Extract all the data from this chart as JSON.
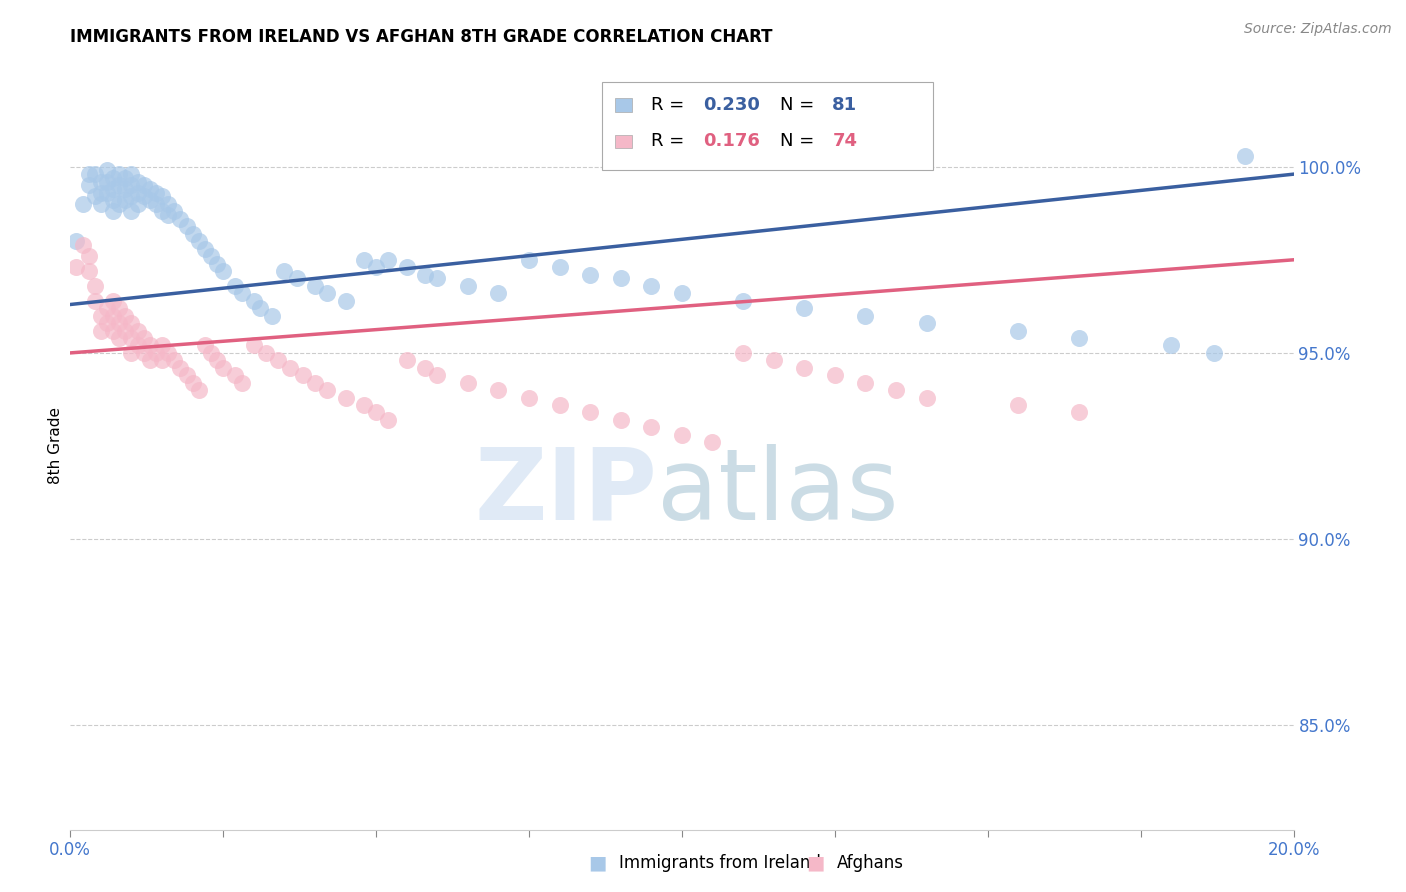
{
  "title": "IMMIGRANTS FROM IRELAND VS AFGHAN 8TH GRADE CORRELATION CHART",
  "source": "Source: ZipAtlas.com",
  "ylabel": "8th Grade",
  "ytick_values": [
    0.85,
    0.9,
    0.95,
    1.0
  ],
  "xlim": [
    0.0,
    0.2
  ],
  "ylim": [
    0.822,
    1.028
  ],
  "ireland_R": "0.230",
  "ireland_N": "81",
  "afghan_R": "0.176",
  "afghan_N": "74",
  "ireland_color": "#a8c8e8",
  "afghan_color": "#f5b8c8",
  "ireland_line_color": "#3a5fa0",
  "afghan_line_color": "#e06080",
  "background_color": "#ffffff",
  "grid_color": "#cccccc",
  "axis_label_color": "#4477cc",
  "title_fontsize": 12,
  "ireland_scatter_x": [
    0.001,
    0.002,
    0.003,
    0.003,
    0.004,
    0.004,
    0.005,
    0.005,
    0.005,
    0.006,
    0.006,
    0.006,
    0.007,
    0.007,
    0.007,
    0.007,
    0.008,
    0.008,
    0.008,
    0.009,
    0.009,
    0.009,
    0.01,
    0.01,
    0.01,
    0.01,
    0.011,
    0.011,
    0.011,
    0.012,
    0.012,
    0.013,
    0.013,
    0.014,
    0.014,
    0.015,
    0.015,
    0.016,
    0.016,
    0.017,
    0.018,
    0.019,
    0.02,
    0.021,
    0.022,
    0.023,
    0.024,
    0.025,
    0.027,
    0.028,
    0.03,
    0.031,
    0.033,
    0.035,
    0.037,
    0.04,
    0.042,
    0.045,
    0.048,
    0.05,
    0.052,
    0.055,
    0.058,
    0.06,
    0.065,
    0.07,
    0.075,
    0.08,
    0.085,
    0.09,
    0.095,
    0.1,
    0.11,
    0.12,
    0.13,
    0.14,
    0.155,
    0.165,
    0.18,
    0.187,
    0.192
  ],
  "ireland_scatter_y": [
    0.98,
    0.99,
    0.998,
    0.995,
    0.992,
    0.998,
    0.996,
    0.993,
    0.99,
    0.999,
    0.996,
    0.993,
    0.997,
    0.994,
    0.991,
    0.988,
    0.998,
    0.995,
    0.99,
    0.997,
    0.994,
    0.991,
    0.998,
    0.995,
    0.992,
    0.988,
    0.996,
    0.993,
    0.99,
    0.995,
    0.992,
    0.994,
    0.991,
    0.993,
    0.99,
    0.992,
    0.988,
    0.99,
    0.987,
    0.988,
    0.986,
    0.984,
    0.982,
    0.98,
    0.978,
    0.976,
    0.974,
    0.972,
    0.968,
    0.966,
    0.964,
    0.962,
    0.96,
    0.972,
    0.97,
    0.968,
    0.966,
    0.964,
    0.975,
    0.973,
    0.975,
    0.973,
    0.971,
    0.97,
    0.968,
    0.966,
    0.975,
    0.973,
    0.971,
    0.97,
    0.968,
    0.966,
    0.964,
    0.962,
    0.96,
    0.958,
    0.956,
    0.954,
    0.952,
    0.95,
    1.003
  ],
  "afghan_scatter_x": [
    0.001,
    0.002,
    0.003,
    0.003,
    0.004,
    0.004,
    0.005,
    0.005,
    0.006,
    0.006,
    0.007,
    0.007,
    0.007,
    0.008,
    0.008,
    0.008,
    0.009,
    0.009,
    0.01,
    0.01,
    0.01,
    0.011,
    0.011,
    0.012,
    0.012,
    0.013,
    0.013,
    0.014,
    0.015,
    0.015,
    0.016,
    0.017,
    0.018,
    0.019,
    0.02,
    0.021,
    0.022,
    0.023,
    0.024,
    0.025,
    0.027,
    0.028,
    0.03,
    0.032,
    0.034,
    0.036,
    0.038,
    0.04,
    0.042,
    0.045,
    0.048,
    0.05,
    0.052,
    0.055,
    0.058,
    0.06,
    0.065,
    0.07,
    0.075,
    0.08,
    0.085,
    0.09,
    0.095,
    0.1,
    0.105,
    0.11,
    0.115,
    0.12,
    0.125,
    0.13,
    0.135,
    0.14,
    0.155,
    0.165
  ],
  "afghan_scatter_y": [
    0.973,
    0.979,
    0.976,
    0.972,
    0.968,
    0.964,
    0.96,
    0.956,
    0.962,
    0.958,
    0.964,
    0.96,
    0.956,
    0.962,
    0.958,
    0.954,
    0.96,
    0.956,
    0.958,
    0.954,
    0.95,
    0.956,
    0.952,
    0.954,
    0.95,
    0.952,
    0.948,
    0.95,
    0.952,
    0.948,
    0.95,
    0.948,
    0.946,
    0.944,
    0.942,
    0.94,
    0.952,
    0.95,
    0.948,
    0.946,
    0.944,
    0.942,
    0.952,
    0.95,
    0.948,
    0.946,
    0.944,
    0.942,
    0.94,
    0.938,
    0.936,
    0.934,
    0.932,
    0.948,
    0.946,
    0.944,
    0.942,
    0.94,
    0.938,
    0.936,
    0.934,
    0.932,
    0.93,
    0.928,
    0.926,
    0.95,
    0.948,
    0.946,
    0.944,
    0.942,
    0.94,
    0.938,
    0.936,
    0.934
  ],
  "ireland_trend_x": [
    0.0,
    0.2
  ],
  "ireland_trend_y": [
    0.963,
    0.998
  ],
  "afghan_trend_x": [
    0.0,
    0.2
  ],
  "afghan_trend_y": [
    0.95,
    0.975
  ],
  "xtick_positions": [
    0.0,
    0.025,
    0.05,
    0.075,
    0.1,
    0.125,
    0.15,
    0.175,
    0.2
  ],
  "xtick_main_labels": {
    "0.0": "0.0%",
    "0.2": "20.0%"
  }
}
